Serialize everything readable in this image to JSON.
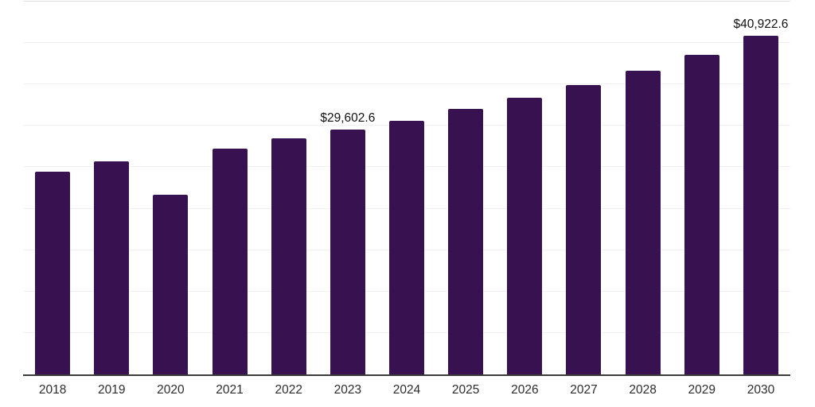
{
  "chart_data": {
    "type": "bar",
    "title": "",
    "xlabel": "",
    "ylabel": "",
    "categories": [
      "2018",
      "2019",
      "2020",
      "2021",
      "2022",
      "2023",
      "2024",
      "2025",
      "2026",
      "2027",
      "2028",
      "2029",
      "2030"
    ],
    "values": [
      24450,
      25700,
      21700,
      27270,
      28490,
      29602.6,
      30660,
      32030,
      33430,
      34960,
      36640,
      38620,
      40922.6
    ],
    "value_labels": {
      "2023": "$29,602.6",
      "2030": "$40,922.6"
    },
    "ylim": [
      0,
      45000
    ],
    "gridline_interval": 5000,
    "grid": "horizontal",
    "legend_position": "none",
    "colors": {
      "bar": "#371150",
      "gridline": "#f1f1f1",
      "top_gridline": "#e2e2e2",
      "axis_line": "#3a3a3a",
      "value_label_text": "#111111",
      "tick_label_text": "#2d2d2d",
      "background": "#ffffff"
    }
  }
}
